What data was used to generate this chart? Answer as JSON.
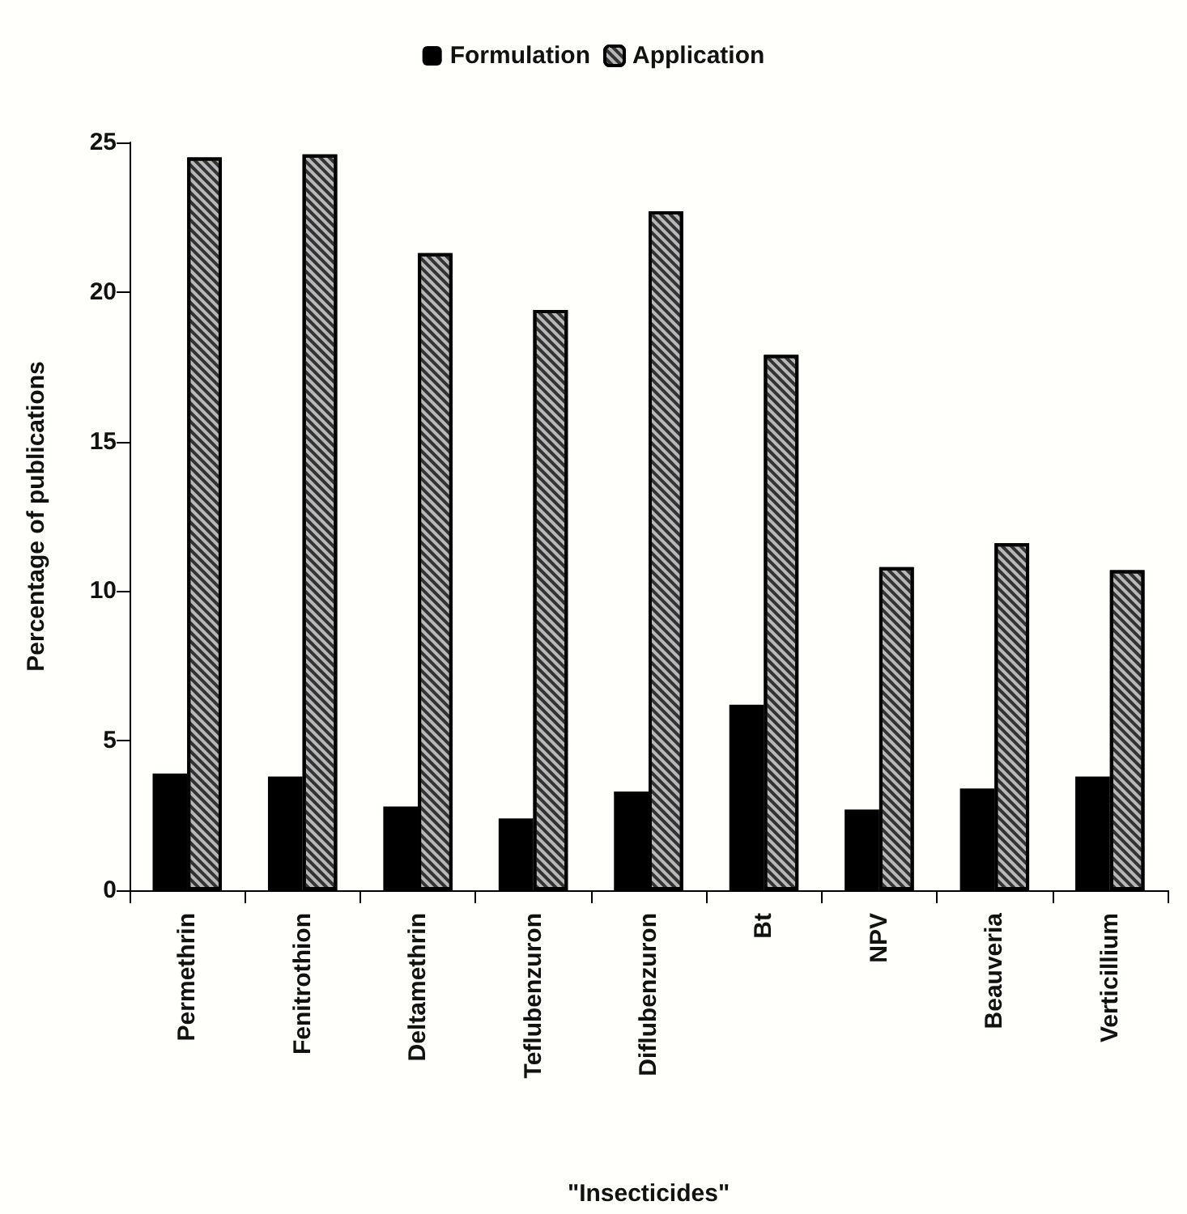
{
  "chart_data": {
    "type": "bar",
    "xlabel": "\"Insecticides\"",
    "ylabel": "Percentage of publications",
    "categories": [
      "Permethrin",
      "Fenitrothion",
      "Deltamethrin",
      "Teflubenzuron",
      "Diflubenzuron",
      "Bt",
      "NPV",
      "Beauveria",
      "Verticillium"
    ],
    "series": [
      {
        "name": "Formulation",
        "color": "#000000",
        "values": [
          3.9,
          3.8,
          2.8,
          2.4,
          3.3,
          6.2,
          2.7,
          3.4,
          3.8
        ]
      },
      {
        "name": "Application",
        "color": "#b8b8b8",
        "values": [
          24.5,
          24.6,
          21.3,
          19.4,
          22.7,
          17.9,
          10.8,
          11.6,
          10.7
        ]
      }
    ],
    "ylim": [
      0,
      25
    ],
    "yticks": [
      0,
      5,
      10,
      15,
      20,
      25
    ],
    "grid": false,
    "legend": "top"
  }
}
